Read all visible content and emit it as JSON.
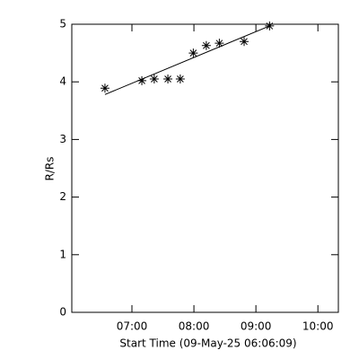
{
  "chart_data": {
    "type": "scatter",
    "x_label": "Start Time (09-May-25 06:06:09)",
    "y_label": "R/Rs",
    "x": [
      6.565,
      7.16,
      7.36,
      7.58,
      7.78,
      7.99,
      8.2,
      8.41,
      8.81,
      9.22
    ],
    "values": [
      3.89,
      4.02,
      4.05,
      4.05,
      4.05,
      4.5,
      4.63,
      4.67,
      4.7,
      4.97
    ],
    "fit_line": {
      "x": [
        6.565,
        9.22
      ],
      "y": [
        3.78,
        4.97
      ]
    },
    "color": "#000000",
    "xlim": [
      6.03,
      10.33
    ],
    "xticks": [
      {
        "value": 7,
        "label": "07:00"
      },
      {
        "value": 8,
        "label": "08:00"
      },
      {
        "value": 9,
        "label": "09:00"
      },
      {
        "value": 10,
        "label": "10:00"
      }
    ],
    "ylim": [
      0,
      5
    ],
    "yticks": [
      0,
      1,
      2,
      3,
      4,
      5
    ]
  }
}
